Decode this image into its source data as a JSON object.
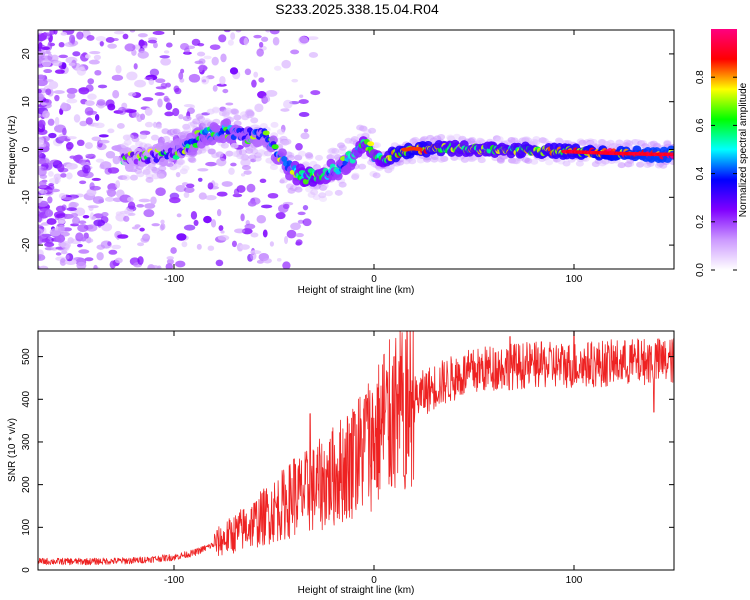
{
  "title": "S233.2025.338.15.04.R04",
  "chart_data": [
    {
      "type": "heatmap",
      "panel": "spectrogram",
      "xlabel": "Height of straight line (km)",
      "ylabel": "Frequency (Hz)",
      "xlim": [
        -168,
        150
      ],
      "ylim": [
        -25,
        25
      ],
      "xticks": [
        -100,
        0,
        100
      ],
      "yticks": [
        -20,
        -10,
        0,
        10,
        20
      ],
      "ridge": {
        "x": [
          -120,
          -105,
          -95,
          -85,
          -75,
          -65,
          -55,
          -48,
          -42,
          -36,
          -30,
          -24,
          -18,
          -12,
          -8,
          -4,
          0,
          5,
          10,
          20,
          40,
          60,
          80,
          100,
          120,
          140,
          150
        ],
        "y": [
          -2,
          -1,
          0,
          3,
          4,
          3,
          3,
          -1,
          -4,
          -5.5,
          -6,
          -5,
          -4,
          -2,
          0,
          1.5,
          -1.5,
          -2,
          -1,
          0,
          0.3,
          0,
          -0.2,
          -0.5,
          -0.8,
          -1,
          -1
        ],
        "amplitude": [
          0.25,
          0.3,
          0.35,
          0.4,
          0.4,
          0.4,
          0.35,
          0.4,
          0.45,
          0.55,
          0.6,
          0.5,
          0.45,
          0.45,
          0.5,
          0.55,
          0.5,
          0.6,
          0.75,
          0.8,
          0.65,
          0.65,
          0.7,
          0.75,
          0.85,
          0.9,
          0.9
        ]
      },
      "colorbar": {
        "label": "Normalized spectral amplitude",
        "range": [
          0,
          1
        ],
        "ticks": [
          "0.0",
          "0.2",
          "0.4",
          "0.6",
          "0.8"
        ],
        "colors": [
          "#ffffff",
          "#cc99ff",
          "#8000ff",
          "#0000ff",
          "#00ffff",
          "#00ff00",
          "#ffff00",
          "#ff0000",
          "#ff0080"
        ]
      }
    },
    {
      "type": "line",
      "panel": "snr",
      "xlabel": "Height of straight line (km)",
      "ylabel": "SNR (10 * v/v)",
      "xlim": [
        -168,
        150
      ],
      "ylim": [
        0,
        560
      ],
      "xticks": [
        -100,
        0,
        100
      ],
      "yticks": [
        0,
        100,
        200,
        300,
        400,
        500
      ],
      "series": [
        {
          "name": "SNR",
          "color": "#ee2222",
          "envelope_x": [
            -168,
            -140,
            -120,
            -100,
            -90,
            -80,
            -70,
            -60,
            -50,
            -40,
            -30,
            -20,
            -10,
            0,
            10,
            20,
            30,
            40,
            50,
            60,
            80,
            100,
            120,
            140,
            150
          ],
          "envelope_y": [
            20,
            20,
            22,
            30,
            40,
            60,
            85,
            110,
            140,
            170,
            190,
            220,
            260,
            310,
            360,
            400,
            430,
            450,
            465,
            475,
            480,
            480,
            485,
            490,
            490
          ],
          "spikes": [
            [
              -40,
              90
            ],
            [
              -32,
              180
            ],
            [
              -10,
              110
            ],
            [
              -4,
              120
            ],
            [
              5,
              170
            ],
            [
              10,
              140
            ],
            [
              15,
              -160
            ],
            [
              68,
              70
            ],
            [
              100,
              80
            ],
            [
              140,
              -120
            ]
          ]
        }
      ]
    }
  ]
}
